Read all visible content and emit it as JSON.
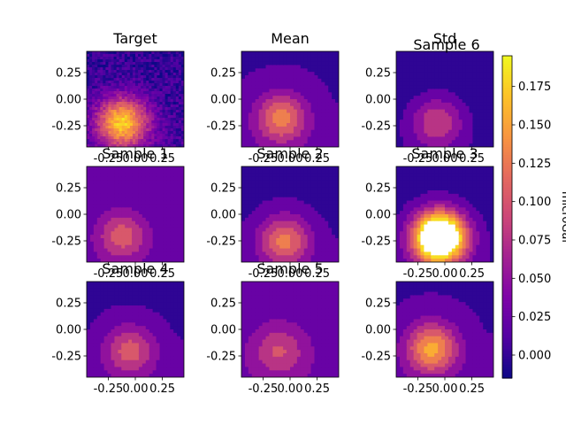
{
  "figure": {
    "colormap": "plasma",
    "colorbar_label": "microGal",
    "colorbar_ticks": [
      0.175,
      0.15,
      0.125,
      0.1,
      0.075,
      0.05,
      0.025,
      0.0
    ],
    "colorbar_tick_labels": [
      "0.175",
      "0.150",
      "0.125",
      "0.100",
      "0.075",
      "0.050",
      "0.025",
      "0.000"
    ],
    "colorbar_range": [
      -0.015,
      0.195
    ]
  },
  "chart_data": [
    {
      "type": "heatmap",
      "title": "Target",
      "style": "noisy",
      "center": [
        -0.12,
        -0.22
      ],
      "peak": 0.17,
      "base": 0.0,
      "x_ticks": [
        "-0.25",
        "0.00",
        "0.25"
      ],
      "y_ticks": [
        "0.25",
        "0.00",
        "-0.25"
      ],
      "xlim": [
        -0.45,
        0.45
      ],
      "ylim": [
        -0.45,
        0.45
      ]
    },
    {
      "type": "heatmap",
      "title": "Mean",
      "style": "smooth",
      "center": [
        -0.08,
        -0.18
      ],
      "peak": 0.125,
      "base": 0.01,
      "x_ticks": [
        "-0.25",
        "0.00",
        "0.25"
      ],
      "y_ticks": [
        "0.25",
        "0.00",
        "-0.25"
      ],
      "xlim": [
        -0.45,
        0.45
      ],
      "ylim": [
        -0.45,
        0.45
      ]
    },
    {
      "type": "heatmap",
      "title": "Std",
      "overlay_title": "Sample 6",
      "style": "smooth",
      "center": [
        -0.07,
        -0.22
      ],
      "peak": 0.085,
      "base": -0.005,
      "x_ticks": [
        "-0.25",
        "0.00",
        "0.25"
      ],
      "y_ticks": [
        "0.25",
        "0.00",
        "-0.25"
      ],
      "xlim": [
        -0.45,
        0.45
      ],
      "ylim": [
        -0.45,
        0.45
      ]
    },
    {
      "type": "heatmap",
      "title": "Sample 1",
      "style": "smooth",
      "center": [
        -0.12,
        -0.2
      ],
      "peak": 0.1,
      "base": 0.012,
      "x_ticks": [
        "-0.25",
        "0.00",
        "0.25"
      ],
      "y_ticks": [
        "0.25",
        "0.00",
        "-0.25"
      ],
      "xlim": [
        -0.45,
        0.45
      ],
      "ylim": [
        -0.45,
        0.45
      ]
    },
    {
      "type": "heatmap",
      "title": "Sample 2",
      "style": "smooth",
      "center": [
        -0.05,
        -0.25
      ],
      "peak": 0.12,
      "base": 0.005,
      "x_ticks": [
        "-0.25",
        "0.00",
        "0.25"
      ],
      "y_ticks": [
        "0.25",
        "0.00",
        "-0.25"
      ],
      "xlim": [
        -0.45,
        0.45
      ],
      "ylim": [
        -0.45,
        0.45
      ]
    },
    {
      "type": "heatmap",
      "title": "Sample 3",
      "style": "saturated",
      "center": [
        -0.05,
        -0.22
      ],
      "peak": 0.32,
      "base": 0.0,
      "x_ticks": [
        "-0.25",
        "0.00",
        "0.25"
      ],
      "y_ticks": [
        "0.25",
        "0.00",
        "-0.25"
      ],
      "xlim": [
        -0.45,
        0.45
      ],
      "ylim": [
        -0.45,
        0.45
      ]
    },
    {
      "type": "heatmap",
      "title": "Sample 4",
      "style": "smooth",
      "center": [
        -0.05,
        -0.2
      ],
      "peak": 0.1,
      "base": 0.008,
      "x_ticks": [
        "-0.25",
        "0.00",
        "0.25"
      ],
      "y_ticks": [
        "0.25",
        "0.00",
        "-0.25"
      ],
      "xlim": [
        -0.45,
        0.45
      ],
      "ylim": [
        -0.45,
        0.45
      ]
    },
    {
      "type": "heatmap",
      "title": "Sample 5",
      "style": "smooth",
      "center": [
        -0.1,
        -0.2
      ],
      "peak": 0.09,
      "base": 0.022,
      "x_ticks": [
        "-0.25",
        "0.00",
        "0.25"
      ],
      "y_ticks": [
        "0.25",
        "0.00",
        "-0.25"
      ],
      "xlim": [
        -0.45,
        0.45
      ],
      "ylim": [
        -0.45,
        0.45
      ]
    },
    {
      "type": "heatmap",
      "title": "",
      "style": "smooth",
      "center": [
        -0.12,
        -0.18
      ],
      "peak": 0.15,
      "base": 0.01,
      "x_ticks": [
        "-0.25",
        "0.00",
        "0.25"
      ],
      "y_ticks": [
        "0.25",
        "0.00",
        "-0.25"
      ],
      "xlim": [
        -0.45,
        0.45
      ],
      "ylim": [
        -0.45,
        0.45
      ]
    }
  ]
}
